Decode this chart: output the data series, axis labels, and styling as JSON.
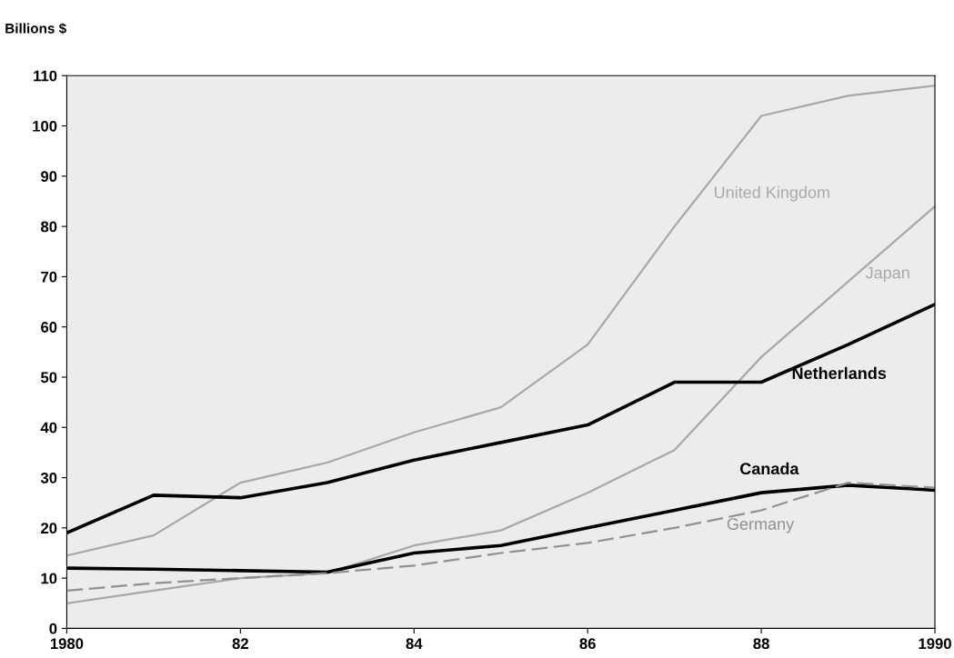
{
  "chart_data": {
    "type": "line",
    "ylabel": "Billions $",
    "x": [
      1980,
      1981,
      1982,
      1983,
      1984,
      1985,
      1986,
      1987,
      1988,
      1989,
      1990
    ],
    "series": [
      {
        "name": "United Kingdom",
        "color": "#a8a8a8",
        "line_style": "solid",
        "values": [
          14.5,
          18.5,
          29,
          33,
          39,
          44,
          56.5,
          80,
          102,
          106,
          108
        ]
      },
      {
        "name": "Japan",
        "color": "#a8a8a8",
        "line_style": "solid",
        "values": [
          5,
          7.5,
          10,
          11,
          16.5,
          19.5,
          27,
          35.5,
          54,
          69,
          84
        ]
      },
      {
        "name": "Netherlands",
        "color": "#000000",
        "line_style": "solid",
        "values": [
          19,
          26.5,
          26,
          29,
          33.5,
          37,
          40.5,
          49,
          49,
          56.5,
          64.5
        ]
      },
      {
        "name": "Canada",
        "color": "#000000",
        "line_style": "solid",
        "values": [
          12,
          11.8,
          11.5,
          11.2,
          15,
          16.5,
          20,
          23.5,
          27,
          28.5,
          27.5
        ]
      },
      {
        "name": "Germany",
        "color": "#909090",
        "line_style": "dashed",
        "values": [
          7.5,
          9,
          10,
          11,
          12.5,
          15,
          17,
          20,
          23.5,
          29,
          28
        ]
      }
    ],
    "xlim": [
      1980,
      1990
    ],
    "xticks": [
      1980,
      {
        "value": 1982,
        "label": "82"
      },
      {
        "value": 1984,
        "label": "84"
      },
      {
        "value": 1986,
        "label": "86"
      },
      {
        "value": 1988,
        "label": "88"
      },
      {
        "value": 1990,
        "label": "1990"
      }
    ],
    "ylim": [
      0,
      110
    ],
    "yticks": [
      0,
      10,
      20,
      30,
      40,
      50,
      60,
      70,
      80,
      90,
      100,
      110
    ],
    "grid": false,
    "legend": false,
    "marker": "none"
  }
}
